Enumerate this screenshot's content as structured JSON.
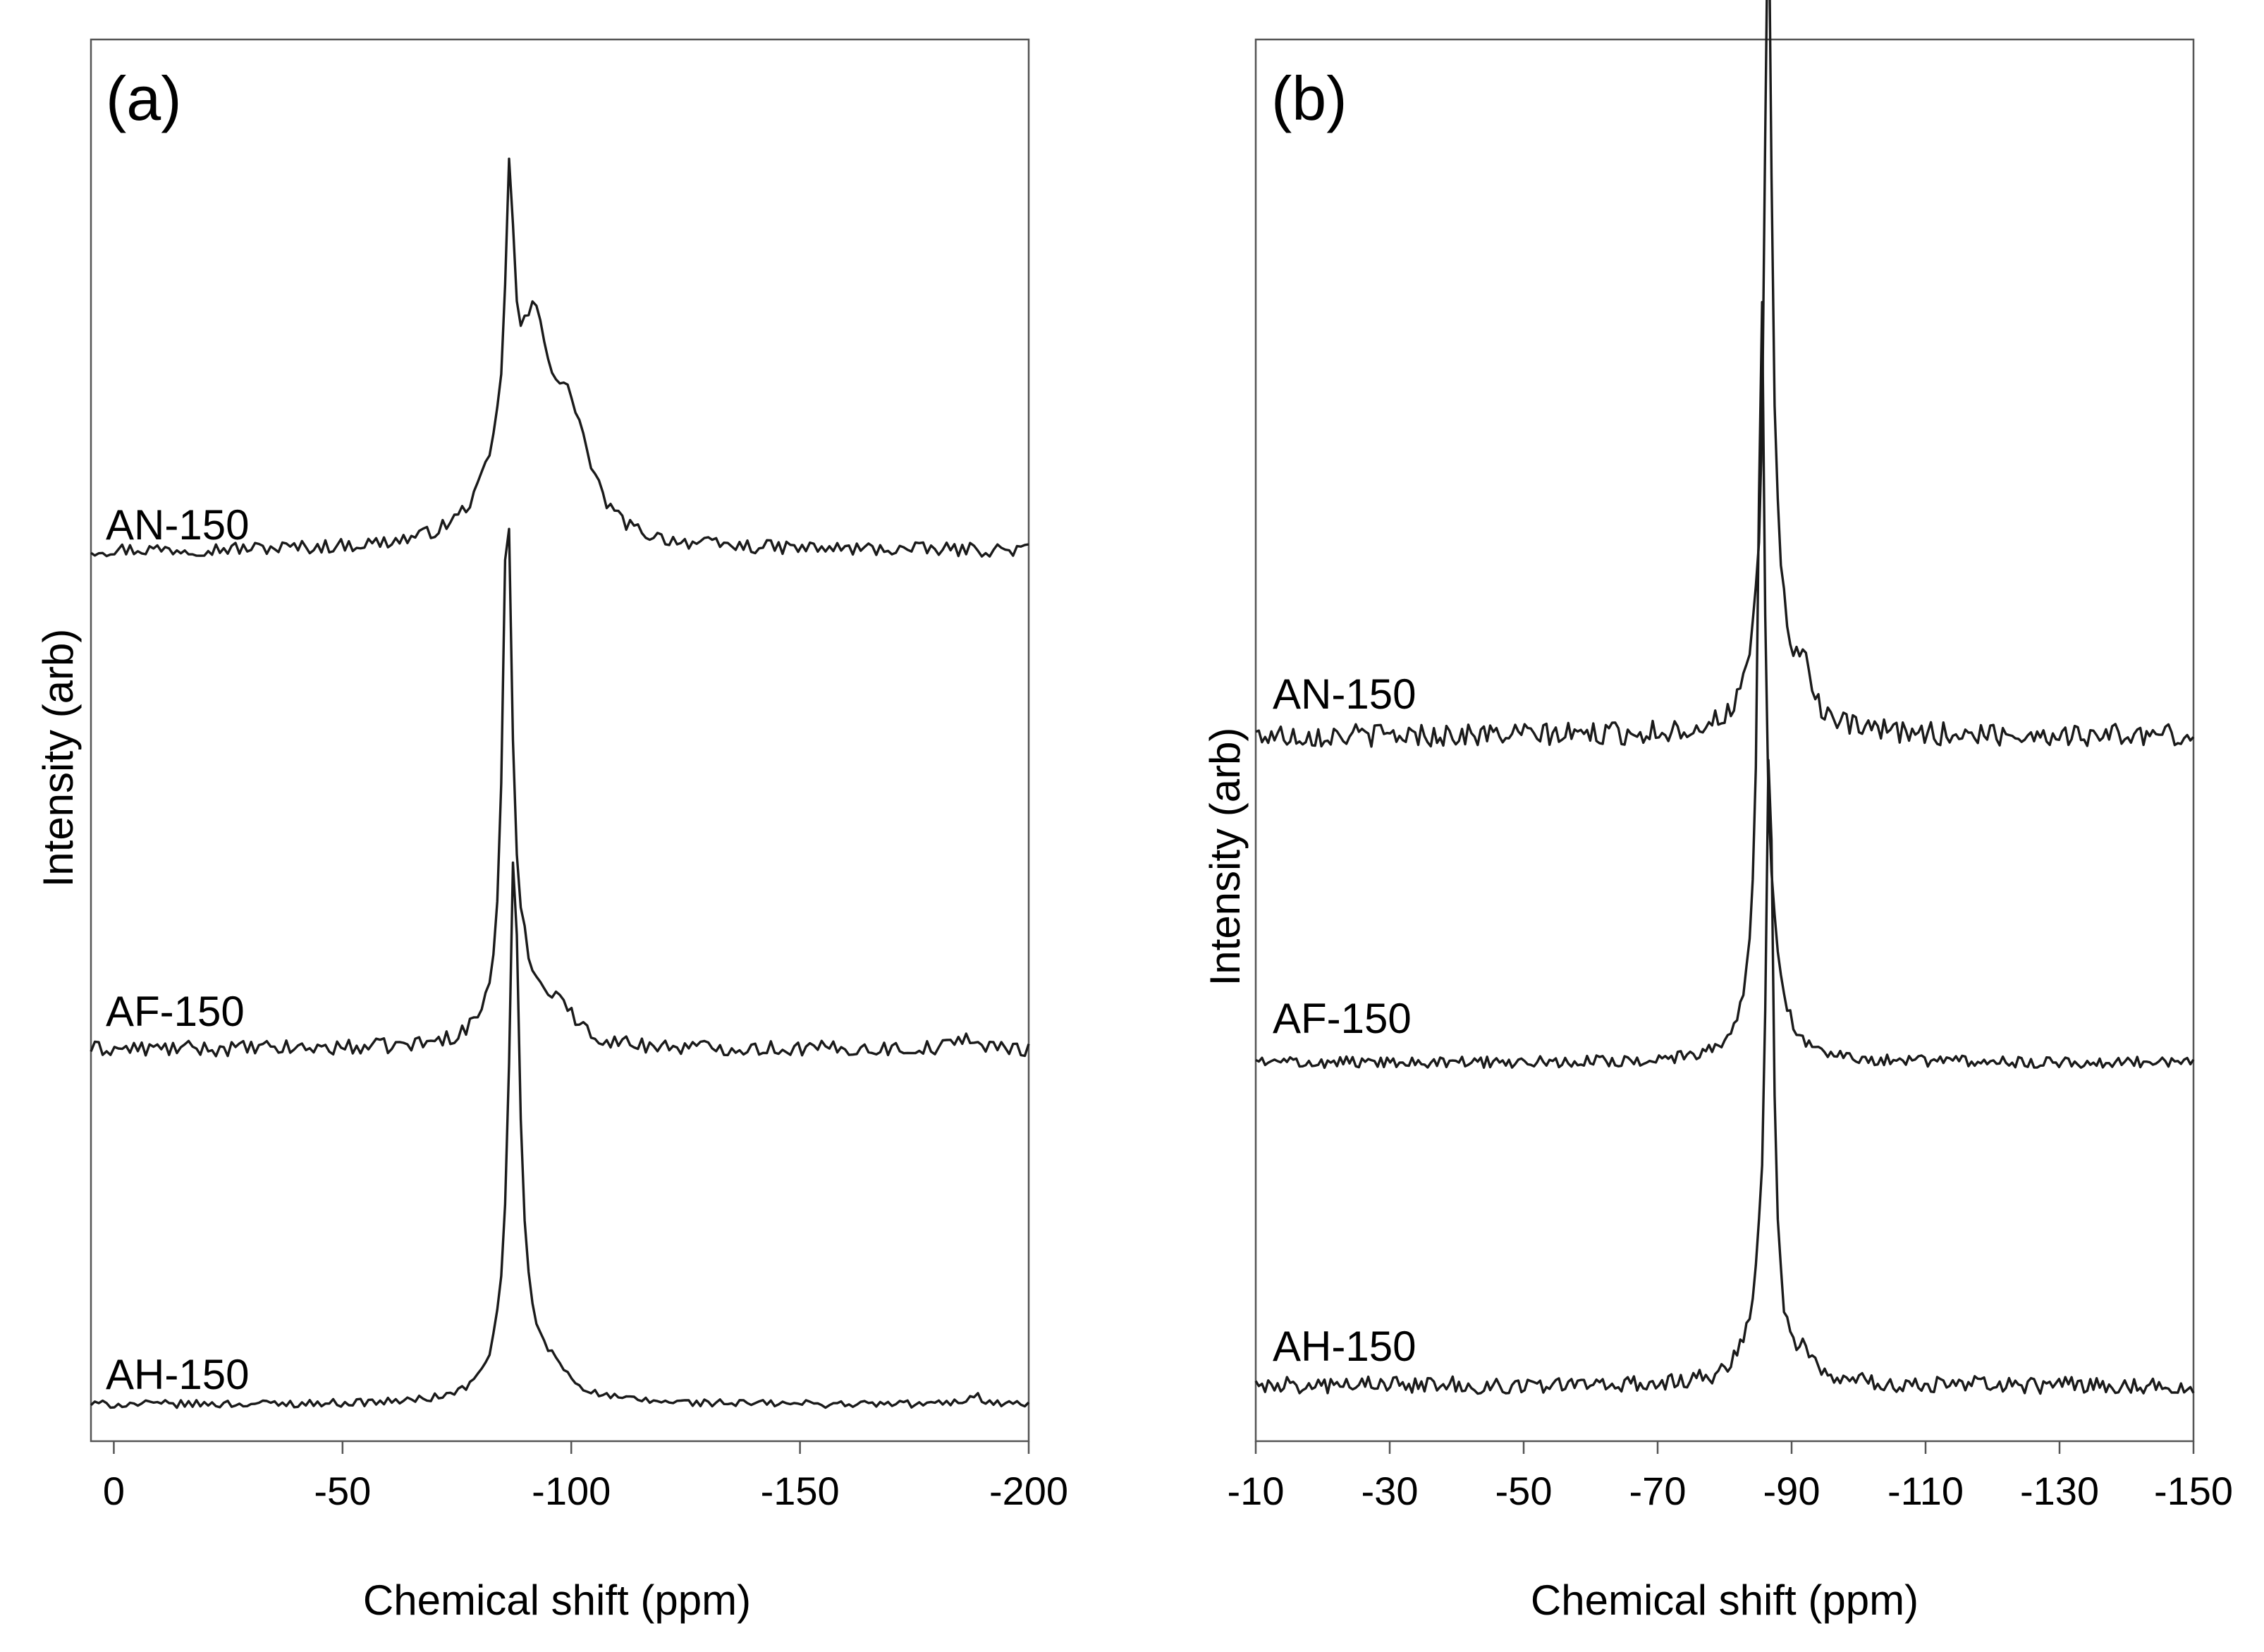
{
  "chart_data": [
    {
      "type": "line",
      "panel_label": "(a)",
      "xlabel": "Chemical shift (ppm)",
      "ylabel": "Intensity (arb)",
      "xlim": [
        5,
        -200
      ],
      "x_ticks": [
        0,
        -50,
        -100,
        -150,
        -200
      ],
      "x_tick_labels": [
        "0",
        "-50",
        "-100",
        "-150",
        "-200"
      ],
      "y_ticks": "none",
      "series": [
        {
          "name": "AN-150",
          "baseline": 3.2,
          "peaks": [
            {
              "center": -86.5,
              "height": 6.6,
              "width": 1.1
            },
            {
              "center": -92,
              "height": 4.5,
              "width": 4.5
            },
            {
              "center": -100,
              "height": 2.6,
              "width": 5
            },
            {
              "center": -86,
              "height": 1.5,
              "width": 7
            }
          ],
          "noise": 0.18
        },
        {
          "name": "AF-150",
          "baseline": 2.1,
          "peaks": [
            {
              "center": -86,
              "height": 12.8,
              "width": 1.1
            },
            {
              "center": -88,
              "height": 2.2,
              "width": 4.5
            },
            {
              "center": -97,
              "height": 0.9,
              "width": 4
            },
            {
              "center": -186,
              "height": 0.35,
              "width": 2
            }
          ],
          "noise": 0.2
        },
        {
          "name": "AH-150",
          "baseline": 0.6,
          "peaks": [
            {
              "center": -87.5,
              "height": 12.3,
              "width": 1.2
            },
            {
              "center": -88,
              "height": 2.3,
              "width": 4
            },
            {
              "center": -96,
              "height": 0.6,
              "width": 5
            },
            {
              "center": -188,
              "height": 0.25,
              "width": 2
            }
          ],
          "noise": 0.1
        }
      ]
    },
    {
      "type": "line",
      "panel_label": "(b)",
      "xlabel": "Chemical shift (ppm)",
      "ylabel": "Intensity (arb)",
      "xlim": [
        -10,
        -150
      ],
      "x_ticks": [
        -10,
        -30,
        -50,
        -70,
        -90,
        -110,
        -130,
        -150
      ],
      "x_tick_labels": [
        "-10",
        "-30",
        "-50",
        "-70",
        "-90",
        "-110",
        "-130",
        "-150"
      ],
      "y_ticks": "none",
      "series": [
        {
          "name": "AN-150",
          "baseline": 3.4,
          "peaks": [
            {
              "center": -86.5,
              "height": 7.6,
              "width": 0.55
            },
            {
              "center": -87,
              "height": 1.6,
              "width": 2.3
            },
            {
              "center": -92,
              "height": 0.45,
              "width": 1.5
            }
          ],
          "noise": 0.12
        },
        {
          "name": "AF-150",
          "baseline": 2.0,
          "peaks": [
            {
              "center": -85.5,
              "height": 6.7,
              "width": 0.55
            },
            {
              "center": -86,
              "height": 1.4,
              "width": 2.3
            }
          ],
          "noise": 0.06
        },
        {
          "name": "AH-150",
          "baseline": 0.6,
          "peaks": [
            {
              "center": -86.7,
              "height": 6.0,
              "width": 0.6
            },
            {
              "center": -86,
              "height": 1.0,
              "width": 2.3
            },
            {
              "center": -92,
              "height": 0.25,
              "width": 1
            }
          ],
          "noise": 0.09
        }
      ]
    }
  ]
}
